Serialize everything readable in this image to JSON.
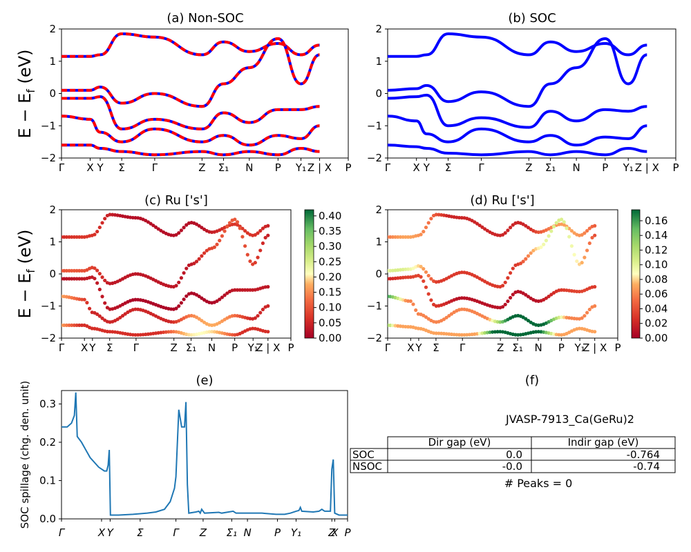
{
  "figure": {
    "title": ""
  },
  "yticks": [
    "2",
    "1",
    "0",
    "−1",
    "−2"
  ],
  "ylabel_energy_main": "E − E",
  "ylabel_energy_sub": "f",
  "ylabel_energy_units": " (eV)",
  "kpath_labels": [
    "Γ",
    "X",
    "Y",
    "Σ",
    "Γ",
    "Z",
    "Σ₁",
    "N",
    "P",
    "Y₁",
    "Z | X",
    "P"
  ],
  "chart_data": [
    {
      "panel": "a",
      "type": "line",
      "title": "(a) Non-SOC",
      "ylabel": "E − E_f (eV)",
      "ylim": [
        -2,
        2
      ],
      "xticks": [
        "Γ",
        "X",
        "Y",
        "Σ",
        "Γ",
        "Z",
        "Σ₁",
        "N",
        "P",
        "Y₁",
        "Z | X",
        "P"
      ],
      "series": [
        {
          "color": "#0000ff",
          "values": [
            1.15,
            1.15,
            1.2,
            1.85,
            1.75,
            1.2,
            1.6,
            1.3,
            1.55,
            1.2,
            1.5
          ]
        },
        {
          "color": "#0000ff",
          "values": [
            0.1,
            0.1,
            0.2,
            -0.3,
            0.0,
            -0.4,
            0.3,
            0.8,
            1.7,
            0.3,
            1.2
          ]
        },
        {
          "color": "#0000ff",
          "values": [
            -0.15,
            -0.15,
            -0.1,
            -1.1,
            -0.8,
            -1.1,
            -0.6,
            -0.9,
            -0.5,
            -0.5,
            -0.4
          ]
        },
        {
          "color": "#0000ff",
          "values": [
            -0.7,
            -0.8,
            -1.2,
            -1.5,
            -1.1,
            -1.5,
            -1.3,
            -1.6,
            -1.3,
            -1.4,
            -1.0
          ]
        },
        {
          "color": "#0000ff",
          "values": [
            -1.6,
            -1.6,
            -1.7,
            -1.8,
            -1.9,
            -1.8,
            -1.9,
            -1.8,
            -1.9,
            -1.7,
            -1.8
          ]
        }
      ],
      "overlay_color": "#ff0000"
    },
    {
      "panel": "b",
      "type": "line",
      "title": "(b) SOC",
      "ylim": [
        -2,
        2
      ],
      "xticks": [
        "Γ",
        "X",
        "Y",
        "Σ",
        "Γ",
        "Z",
        "Σ₁",
        "N",
        "P",
        "Y₁",
        "Z | X",
        "P"
      ],
      "series": [
        {
          "color": "#0000ff",
          "values": [
            1.15,
            1.15,
            1.2,
            1.85,
            1.75,
            1.2,
            1.6,
            1.3,
            1.55,
            1.2,
            1.5
          ]
        },
        {
          "color": "#0000ff",
          "values": [
            0.1,
            0.15,
            0.25,
            -0.25,
            0.05,
            -0.4,
            0.3,
            0.8,
            1.7,
            0.3,
            1.2
          ]
        },
        {
          "color": "#0000ff",
          "values": [
            -0.15,
            -0.1,
            -0.05,
            -1.0,
            -0.75,
            -1.05,
            -0.55,
            -0.85,
            -0.5,
            -0.55,
            -0.4
          ]
        },
        {
          "color": "#0000ff",
          "values": [
            -0.7,
            -0.85,
            -1.25,
            -1.5,
            -1.1,
            -1.5,
            -1.3,
            -1.6,
            -1.35,
            -1.4,
            -1.0
          ]
        },
        {
          "color": "#0000ff",
          "values": [
            -1.6,
            -1.65,
            -1.7,
            -1.85,
            -1.9,
            -1.8,
            -1.9,
            -1.8,
            -1.9,
            -1.7,
            -1.8
          ]
        }
      ]
    },
    {
      "panel": "c",
      "type": "scatter",
      "title": "(c)  Ru ['s']",
      "ylim": [
        -2,
        2
      ],
      "colorbar": {
        "min": 0.0,
        "max": 0.42,
        "ticks": [
          "0.40",
          "0.35",
          "0.30",
          "0.25",
          "0.20",
          "0.15",
          "0.10",
          "0.05",
          "0.00"
        ]
      },
      "xticks": [
        "Γ",
        "X",
        "Y",
        "Σ",
        "Γ",
        "Z",
        "Σ₁",
        "N",
        "P",
        "Y₁",
        "Z | X",
        "P"
      ],
      "bands": [
        {
          "values": [
            1.15,
            1.15,
            1.2,
            1.85,
            1.75,
            1.2,
            1.6,
            1.3,
            1.55,
            1.2,
            1.5
          ],
          "weight": 0.02
        },
        {
          "values": [
            0.1,
            0.1,
            0.2,
            -0.3,
            0.0,
            -0.4,
            0.3,
            0.8,
            1.7,
            0.3,
            1.2
          ],
          "weight": 0.03
        },
        {
          "values": [
            -0.15,
            -0.15,
            -0.1,
            -1.1,
            -0.8,
            -1.1,
            -0.6,
            -0.9,
            -0.5,
            -0.5,
            -0.4
          ],
          "weight": 0.01
        },
        {
          "values": [
            -0.7,
            -0.8,
            -1.2,
            -1.5,
            -1.1,
            -1.5,
            -1.3,
            -1.6,
            -1.3,
            -1.4,
            -1.0
          ],
          "weight": 0.05
        },
        {
          "values": [
            -1.6,
            -1.6,
            -1.7,
            -1.8,
            -1.9,
            -1.8,
            -1.9,
            -1.8,
            -1.9,
            -1.7,
            -1.8
          ],
          "weight": 0.06
        }
      ]
    },
    {
      "panel": "d",
      "type": "scatter",
      "title": "(d) Ru ['s']",
      "ylim": [
        -2,
        2
      ],
      "colorbar": {
        "min": 0.0,
        "max": 0.175,
        "ticks": [
          "0.16",
          "0.14",
          "0.12",
          "0.10",
          "0.08",
          "0.06",
          "0.04",
          "0.02",
          "0.00"
        ]
      },
      "xticks": [
        "Γ",
        "X",
        "Y",
        "Σ",
        "Γ",
        "Z",
        "Σ₁",
        "N",
        "P",
        "Y₁",
        "Z | X",
        "P"
      ],
      "bands": [
        {
          "values": [
            1.15,
            1.15,
            1.2,
            1.85,
            1.75,
            1.2,
            1.6,
            1.3,
            1.55,
            1.2,
            1.5
          ],
          "weight": 0.02
        },
        {
          "values": [
            0.1,
            0.15,
            0.25,
            -0.25,
            0.05,
            -0.4,
            0.3,
            0.8,
            1.7,
            0.3,
            1.2
          ],
          "weight": 0.03
        },
        {
          "values": [
            -0.15,
            -0.1,
            -0.05,
            -1.0,
            -0.75,
            -1.05,
            -0.55,
            -0.85,
            -0.5,
            -0.55,
            -0.4
          ],
          "weight": 0.01
        },
        {
          "values": [
            -0.7,
            -0.85,
            -1.25,
            -1.5,
            -1.1,
            -1.5,
            -1.3,
            -1.6,
            -1.35,
            -1.4,
            -1.0
          ],
          "weight": 0.06
        },
        {
          "values": [
            -1.6,
            -1.65,
            -1.7,
            -1.85,
            -1.9,
            -1.8,
            -1.9,
            -1.8,
            -1.9,
            -1.7,
            -1.8
          ],
          "weight": 0.07
        }
      ]
    },
    {
      "panel": "e",
      "type": "line",
      "title": "(e)",
      "ylabel": "SOC spillage (chg. den. unit)",
      "ylim": [
        0,
        0.335
      ],
      "yticks": [
        "0.3",
        "0.2",
        "0.1",
        "0.0"
      ],
      "xticks": [
        "Γ",
        "X",
        "Y",
        "Σ",
        "Γ",
        "Z",
        "Σ₁",
        "N",
        "P",
        "Y₁",
        "Z",
        "X",
        "P"
      ],
      "color": "#1f77b4",
      "points": [
        [
          0,
          0.24
        ],
        [
          0.02,
          0.24
        ],
        [
          0.035,
          0.25
        ],
        [
          0.045,
          0.27
        ],
        [
          0.05,
          0.33
        ],
        [
          0.055,
          0.215
        ],
        [
          0.07,
          0.2
        ],
        [
          0.1,
          0.16
        ],
        [
          0.13,
          0.135
        ],
        [
          0.15,
          0.125
        ],
        [
          0.158,
          0.125
        ],
        [
          0.163,
          0.14
        ],
        [
          0.167,
          0.18
        ],
        [
          0.171,
          0.01
        ],
        [
          0.2,
          0.01
        ],
        [
          0.25,
          0.012
        ],
        [
          0.3,
          0.015
        ],
        [
          0.33,
          0.018
        ],
        [
          0.36,
          0.025
        ],
        [
          0.38,
          0.045
        ],
        [
          0.395,
          0.08
        ],
        [
          0.4,
          0.11
        ],
        [
          0.41,
          0.285
        ],
        [
          0.42,
          0.24
        ],
        [
          0.43,
          0.24
        ],
        [
          0.435,
          0.305
        ],
        [
          0.44,
          0.09
        ],
        [
          0.445,
          0.015
        ],
        [
          0.47,
          0.018
        ],
        [
          0.48,
          0.02
        ],
        [
          0.485,
          0.015
        ],
        [
          0.49,
          0.025
        ],
        [
          0.5,
          0.015
        ],
        [
          0.55,
          0.017
        ],
        [
          0.56,
          0.015
        ],
        [
          0.6,
          0.02
        ],
        [
          0.61,
          0.015
        ],
        [
          0.7,
          0.015
        ],
        [
          0.75,
          0.012
        ],
        [
          0.78,
          0.012
        ],
        [
          0.8,
          0.015
        ],
        [
          0.82,
          0.02
        ],
        [
          0.83,
          0.022
        ],
        [
          0.835,
          0.03
        ],
        [
          0.84,
          0.02
        ],
        [
          0.88,
          0.018
        ],
        [
          0.9,
          0.02
        ],
        [
          0.91,
          0.025
        ],
        [
          0.92,
          0.02
        ],
        [
          0.94,
          0.02
        ],
        [
          0.945,
          0.13
        ],
        [
          0.95,
          0.155
        ],
        [
          0.955,
          0.015
        ],
        [
          0.97,
          0.01
        ],
        [
          1.0,
          0.01
        ]
      ]
    }
  ],
  "panel_f": {
    "title": "(f)",
    "material": "JVASP-7913_Ca(GeRu)2",
    "table_headers": [
      "",
      "Dir gap (eV)",
      "Indir gap (eV)"
    ],
    "table_rows": [
      [
        "SOC",
        "0.0",
        "-0.764"
      ],
      [
        "NSOC",
        "-0.0",
        "-0.74"
      ]
    ],
    "peaks": "# Peaks = 0"
  }
}
